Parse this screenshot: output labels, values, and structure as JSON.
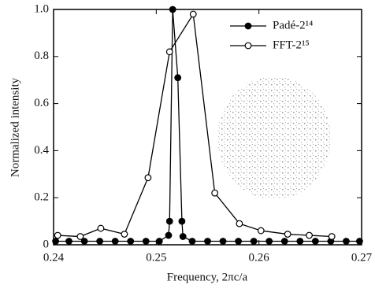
{
  "chart_data": {
    "type": "line",
    "x_label": "Frequency, 2πc/a",
    "y_label": "Normalized intensity",
    "xlim": [
      0.24,
      0.27
    ],
    "ylim": [
      0,
      1
    ],
    "xticks": [
      0.24,
      0.25,
      0.26,
      0.27
    ],
    "yticks": [
      0,
      0.2,
      0.4,
      0.6,
      0.8,
      {
        "value": 1,
        "label": "1.0"
      }
    ],
    "legend": "upper right",
    "series": [
      {
        "name": "Padé-2¹⁴",
        "color": "#000000",
        "marker": "filled",
        "x": [
          0.2402,
          0.2415,
          0.243,
          0.2445,
          0.246,
          0.2475,
          0.249,
          0.2503,
          0.2512,
          0.2513,
          0.2516,
          0.2521,
          0.2525,
          0.2526,
          0.2535,
          0.255,
          0.2565,
          0.258,
          0.2595,
          0.261,
          0.2625,
          0.264,
          0.2655,
          0.267,
          0.2685,
          0.2698
        ],
        "values": [
          0.015,
          0.015,
          0.015,
          0.015,
          0.015,
          0.015,
          0.015,
          0.015,
          0.04,
          0.1,
          1.0,
          0.71,
          0.1,
          0.035,
          0.015,
          0.015,
          0.015,
          0.015,
          0.015,
          0.015,
          0.015,
          0.015,
          0.015,
          0.015,
          0.015,
          0.015
        ]
      },
      {
        "name": "FFT-2¹⁵",
        "color": "#000000",
        "marker": "open",
        "x": [
          0.2404,
          0.2426,
          0.2446,
          0.2469,
          0.2492,
          0.2513,
          0.2536,
          0.2557,
          0.2581,
          0.2602,
          0.2628,
          0.2649,
          0.2671
        ],
        "values": [
          0.04,
          0.035,
          0.07,
          0.045,
          0.285,
          0.82,
          0.98,
          0.22,
          0.09,
          0.06,
          0.045,
          0.04,
          0.035
        ]
      }
    ]
  }
}
